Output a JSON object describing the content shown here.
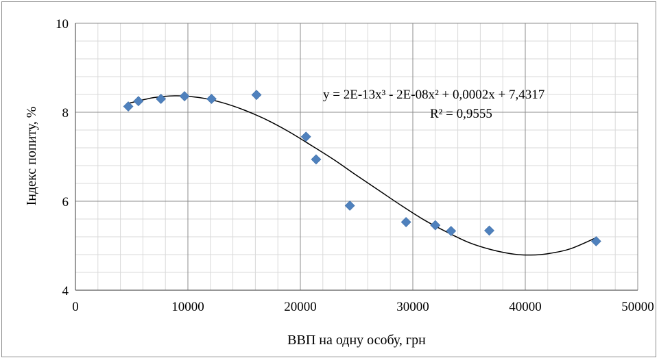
{
  "chart_data": {
    "type": "scatter",
    "title": "",
    "xlabel": "ВВП на одну особу, грн",
    "ylabel": "Індекс попиту, %",
    "xlim": [
      0,
      50000
    ],
    "ylim": [
      4,
      10
    ],
    "x_ticks": [
      0,
      10000,
      20000,
      30000,
      40000,
      50000
    ],
    "y_ticks": [
      4,
      6,
      8,
      10
    ],
    "x_tick_labels": [
      "0",
      "10000",
      "20000",
      "30000",
      "40000",
      "50000"
    ],
    "y_tick_labels": [
      "4",
      "6",
      "8",
      "10"
    ],
    "grid": true,
    "marker_color": "#4f81bd",
    "trend_color": "#000000",
    "series": [
      {
        "points": [
          {
            "x": 4700,
            "y": 8.13
          },
          {
            "x": 5600,
            "y": 8.25
          },
          {
            "x": 7600,
            "y": 8.3
          },
          {
            "x": 9700,
            "y": 8.36
          },
          {
            "x": 12100,
            "y": 8.3
          },
          {
            "x": 16100,
            "y": 8.39
          },
          {
            "x": 20500,
            "y": 7.45
          },
          {
            "x": 21400,
            "y": 6.94
          },
          {
            "x": 24400,
            "y": 5.9
          },
          {
            "x": 29400,
            "y": 5.53
          },
          {
            "x": 32000,
            "y": 5.46
          },
          {
            "x": 33400,
            "y": 5.33
          },
          {
            "x": 36800,
            "y": 5.34
          },
          {
            "x": 46300,
            "y": 5.1
          }
        ]
      }
    ],
    "trendline": {
      "type": "polynomial",
      "equation_label": "y = 2E-13x³ - 2E-08x² + 0,0002x + 7,4317",
      "r2_label": "R² = 0,9555",
      "curve": [
        {
          "x": 4700,
          "y": 8.2
        },
        {
          "x": 7000,
          "y": 8.33
        },
        {
          "x": 9000,
          "y": 8.37
        },
        {
          "x": 11000,
          "y": 8.33
        },
        {
          "x": 13000,
          "y": 8.22
        },
        {
          "x": 15000,
          "y": 8.05
        },
        {
          "x": 17000,
          "y": 7.83
        },
        {
          "x": 19000,
          "y": 7.56
        },
        {
          "x": 21000,
          "y": 7.25
        },
        {
          "x": 23000,
          "y": 6.93
        },
        {
          "x": 25000,
          "y": 6.58
        },
        {
          "x": 27000,
          "y": 6.24
        },
        {
          "x": 29000,
          "y": 5.9
        },
        {
          "x": 31000,
          "y": 5.58
        },
        {
          "x": 33000,
          "y": 5.31
        },
        {
          "x": 35000,
          "y": 5.07
        },
        {
          "x": 37000,
          "y": 4.91
        },
        {
          "x": 39000,
          "y": 4.81
        },
        {
          "x": 40500,
          "y": 4.79
        },
        {
          "x": 42000,
          "y": 4.82
        },
        {
          "x": 44000,
          "y": 4.93
        },
        {
          "x": 46300,
          "y": 5.18
        }
      ]
    }
  }
}
